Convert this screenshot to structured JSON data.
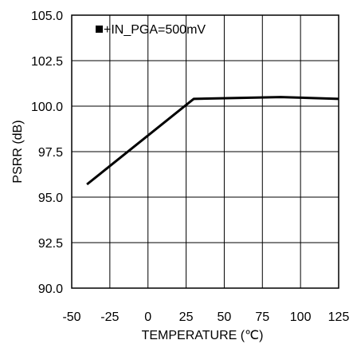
{
  "chart_data": {
    "type": "line",
    "title": "",
    "xlabel": "TEMPERATURE (℃)",
    "ylabel": "PSRR (dB)",
    "xlim": [
      -50,
      125
    ],
    "ylim": [
      90.0,
      105.0
    ],
    "x_ticks": [
      "-50",
      "-25",
      "0",
      "25",
      "50",
      "75",
      "100",
      "125"
    ],
    "x_tick_values": [
      -50,
      -25,
      0,
      25,
      50,
      75,
      100,
      125
    ],
    "y_ticks": [
      "90.0",
      "92.5",
      "95.0",
      "97.5",
      "100.0",
      "102.5",
      "105.0"
    ],
    "y_tick_values": [
      90.0,
      92.5,
      95.0,
      97.5,
      100.0,
      102.5,
      105.0
    ],
    "grid": true,
    "legend_position": "top-left",
    "series": [
      {
        "name": "+IN_PGA=500mV",
        "color": "#000000",
        "x": [
          -40,
          30,
          87,
          125
        ],
        "y": [
          95.7,
          100.4,
          100.5,
          100.4
        ]
      }
    ]
  }
}
